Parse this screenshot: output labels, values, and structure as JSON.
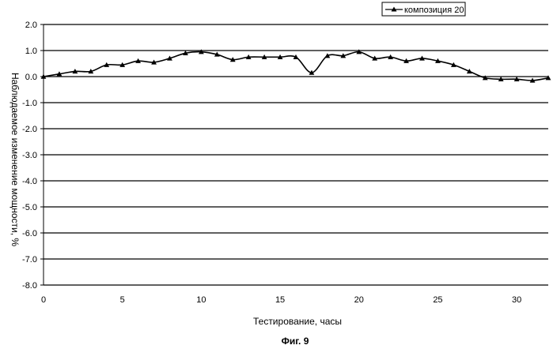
{
  "chart_data": {
    "type": "line",
    "xlabel": "Тестирование, часы",
    "ylabel": "Наблюдаемое изменение мощности, %",
    "xlim": [
      0,
      32
    ],
    "ylim": [
      -8.0,
      2.0
    ],
    "x_ticks": [
      0,
      5,
      10,
      15,
      20,
      25,
      30
    ],
    "x_tick_labels": [
      "0",
      "5",
      "10",
      "15",
      "20",
      "25",
      "30"
    ],
    "y_ticks": [
      2.0,
      1.0,
      0.0,
      -1.0,
      -2.0,
      -3.0,
      -4.0,
      -5.0,
      -6.0,
      -7.0,
      -8.0
    ],
    "y_tick_labels": [
      "2.0",
      "1.0",
      "0.0",
      "-1.0",
      "-2.0",
      "-3.0",
      "-4.0",
      "-5.0",
      "-6.0",
      "-7.0",
      "-8.0"
    ],
    "grid": "horizontal",
    "legend_position": "top-right",
    "series": [
      {
        "name": "композиция 20",
        "color": "#000000",
        "marker": "triangle",
        "smooth": true,
        "x": [
          0,
          1,
          2,
          3,
          4,
          5,
          6,
          7,
          8,
          9,
          10,
          11,
          12,
          13,
          14,
          15,
          16,
          17,
          18,
          19,
          20,
          21,
          22,
          23,
          24,
          25,
          26,
          27,
          28,
          29,
          30,
          31,
          32
        ],
        "y": [
          0.0,
          0.1,
          0.2,
          0.2,
          0.45,
          0.45,
          0.6,
          0.55,
          0.7,
          0.9,
          0.95,
          0.85,
          0.65,
          0.75,
          0.75,
          0.75,
          0.75,
          0.15,
          0.8,
          0.8,
          0.95,
          0.7,
          0.75,
          0.6,
          0.7,
          0.6,
          0.45,
          0.2,
          -0.05,
          -0.1,
          -0.1,
          -0.15,
          -0.05
        ]
      }
    ]
  },
  "caption": "Фиг. 9"
}
